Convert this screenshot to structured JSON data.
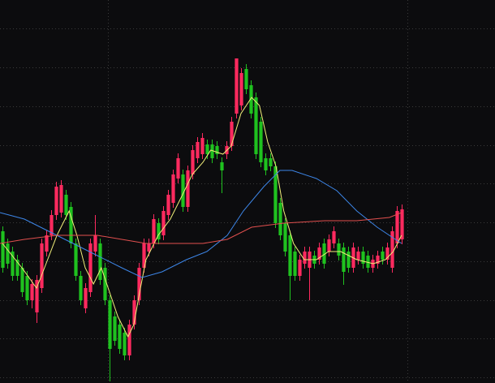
{
  "chart_data": {
    "type": "candlestick",
    "up_color": "#ff2a5f",
    "down_color": "#1fc21f",
    "grid": true,
    "grid_color": "#3a3a3a",
    "xlim": [
      -0.5,
      101.2
    ],
    "ylim": [
      0,
      472
    ],
    "xticks": [
      21.7,
      83.2
    ],
    "yticks": [
      437,
      389,
      341,
      293,
      246,
      198,
      150,
      102,
      55,
      7
    ],
    "open": [
      187,
      172,
      162,
      152,
      142,
      132,
      102,
      87,
      117,
      162,
      182,
      207,
      210,
      232,
      217,
      172,
      132,
      92,
      112,
      162,
      172,
      142,
      102,
      82,
      72,
      62,
      34,
      72,
      102,
      142,
      162,
      172,
      197,
      182,
      207,
      222,
      252,
      257,
      217,
      257,
      277,
      282,
      294,
      294,
      292,
      272,
      282,
      292,
      332,
      342,
      387,
      367,
      352,
      322,
      277,
      277,
      267,
      222,
      197,
      182,
      162,
      132,
      147,
      142,
      157,
      152,
      172,
      162,
      172,
      172,
      167,
      162,
      142,
      152,
      162,
      157,
      142,
      147,
      162,
      152,
      142,
      172,
      177
    ],
    "high": [
      193,
      178,
      168,
      158,
      148,
      138,
      128,
      133,
      178,
      188,
      213,
      248,
      250,
      238,
      223,
      178,
      138,
      123,
      178,
      207,
      178,
      148,
      108,
      88,
      78,
      68,
      78,
      108,
      148,
      178,
      178,
      208,
      203,
      218,
      238,
      263,
      283,
      263,
      268,
      293,
      303,
      308,
      300,
      300,
      298,
      278,
      298,
      328,
      400,
      388,
      393,
      373,
      358,
      328,
      283,
      283,
      273,
      228,
      203,
      188,
      168,
      158,
      168,
      168,
      163,
      173,
      178,
      183,
      193,
      178,
      173,
      168,
      173,
      168,
      168,
      163,
      158,
      163,
      168,
      173,
      193,
      218,
      220
    ],
    "low": [
      136,
      141,
      126,
      126,
      106,
      96,
      92,
      74,
      111,
      156,
      176,
      201,
      204,
      201,
      166,
      126,
      96,
      86,
      106,
      156,
      121,
      96,
      2,
      46,
      36,
      28,
      28,
      66,
      96,
      136,
      156,
      166,
      171,
      176,
      201,
      216,
      246,
      211,
      211,
      251,
      271,
      276,
      276,
      271,
      276,
      234,
      276,
      286,
      326,
      336,
      356,
      326,
      276,
      266,
      256,
      261,
      191,
      176,
      156,
      102,
      126,
      126,
      141,
      102,
      141,
      146,
      141,
      156,
      166,
      151,
      121,
      136,
      136,
      146,
      141,
      136,
      136,
      141,
      146,
      146,
      136,
      166,
      171
    ],
    "close": [
      142,
      147,
      132,
      132,
      112,
      102,
      122,
      127,
      172,
      182,
      207,
      242,
      244,
      207,
      172,
      132,
      102,
      117,
      172,
      182,
      127,
      102,
      42,
      52,
      42,
      34,
      72,
      102,
      142,
      172,
      172,
      202,
      177,
      212,
      232,
      257,
      277,
      217,
      262,
      287,
      297,
      302,
      282,
      277,
      282,
      262,
      292,
      322,
      400,
      382,
      362,
      332,
      282,
      272,
      262,
      267,
      197,
      182,
      162,
      132,
      132,
      152,
      162,
      162,
      147,
      167,
      147,
      177,
      187,
      157,
      137,
      142,
      167,
      162,
      147,
      142,
      152,
      157,
      152,
      167,
      187,
      212,
      214
    ],
    "series": [
      {
        "color": "#f2ef7a",
        "x": [
          0,
          4,
          7,
          8,
          11.2,
          13.7,
          15.3,
          17,
          18.7,
          20.3,
          22,
          23.7,
          25.8,
          27,
          28.2,
          29.5,
          32,
          34.5,
          37,
          39,
          41.2,
          42.8,
          45.3,
          47,
          49,
          51.2,
          52.8,
          54.5,
          56.2,
          57.8,
          59.8,
          62,
          64.5,
          67,
          69.5,
          72.8,
          76.2,
          78.7,
          80.3,
          82
        ],
        "values": [
          172,
          142,
          117,
          132,
          182,
          212,
          182,
          142,
          122,
          142,
          112,
          82,
          57,
          72,
          112,
          152,
          182,
          202,
          232,
          257,
          272,
          287,
          282,
          292,
          332,
          352,
          342,
          297,
          267,
          212,
          172,
          152,
          152,
          162,
          162,
          152,
          147,
          152,
          162,
          182
        ]
      },
      {
        "color": "#3d86e8",
        "x": [
          -0.5,
          4.5,
          9.5,
          14.5,
          19.5,
          24.5,
          28.7,
          32.8,
          37.8,
          42,
          46.2,
          49.5,
          53.7,
          57,
          59.5,
          64.5,
          68.7,
          72.8,
          77,
          82
        ],
        "values": [
          210,
          202,
          187,
          172,
          157,
          142,
          130,
          137,
          152,
          162,
          182,
          212,
          242,
          262,
          262,
          252,
          237,
          212,
          192,
          172
        ]
      },
      {
        "color": "#e2504f",
        "x": [
          -0.5,
          4.5,
          11.2,
          19.5,
          29.5,
          41.2,
          46.2,
          51.2,
          57.8,
          66.2,
          72.8,
          79.5,
          82
        ],
        "values": [
          172,
          177,
          182,
          182,
          172,
          172,
          177,
          192,
          197,
          200,
          200,
          204,
          210
        ]
      }
    ]
  }
}
